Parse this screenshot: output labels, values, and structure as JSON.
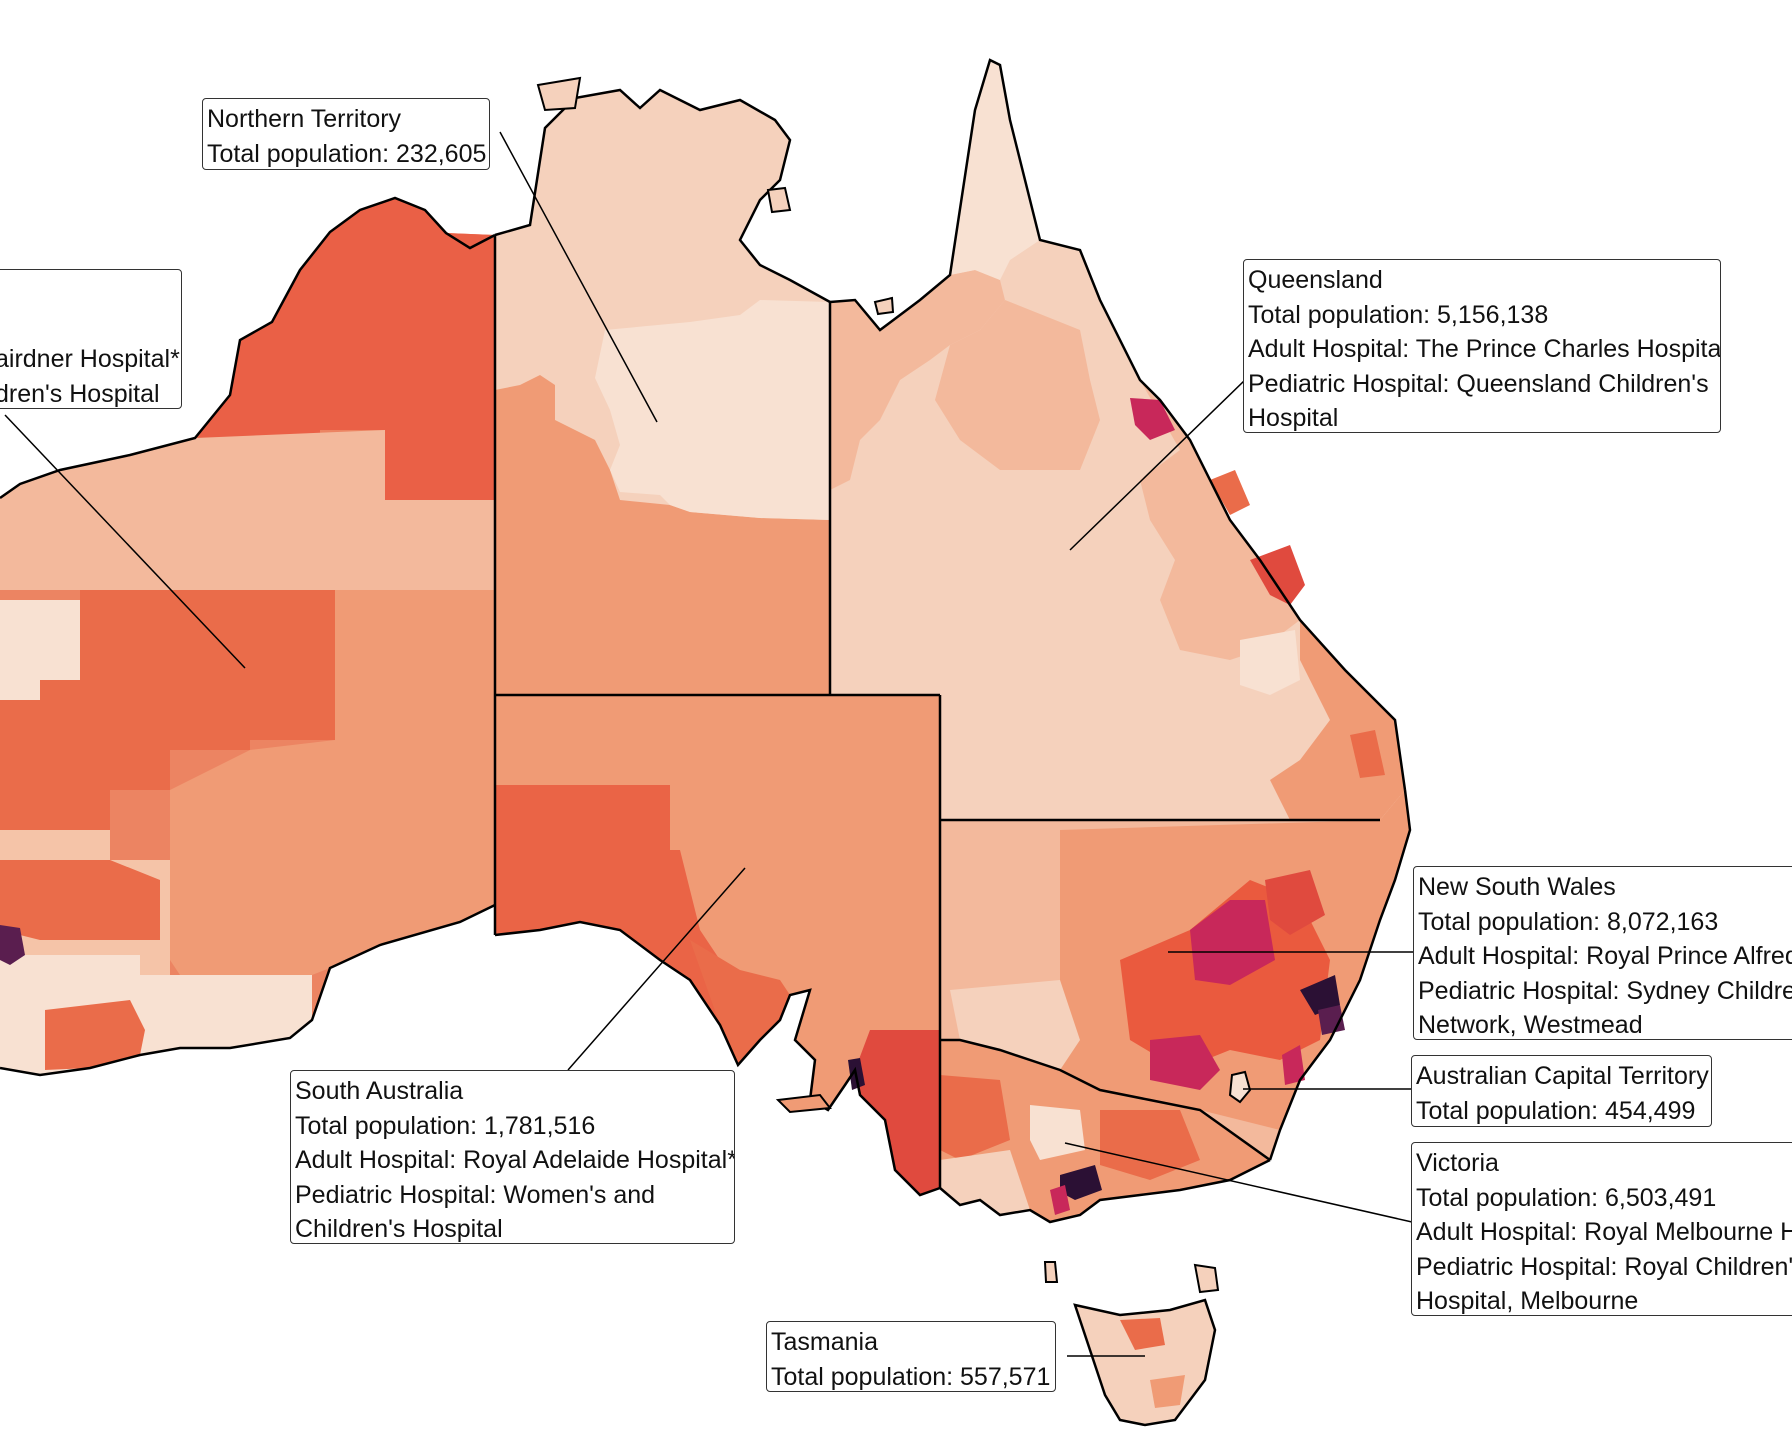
{
  "colors": {
    "border": "#000000",
    "very_light": "#f8e1d2",
    "light": "#f5d1bc",
    "light_mid": "#f3b99c",
    "mid": "#f09b75",
    "mid_dark": "#ec8462",
    "dark": "#ea6c4a",
    "red": "#e04a3e",
    "crimson": "#c8285a",
    "purple": "#5a1e4f",
    "dark_purple": "#2b1034"
  },
  "labels": {
    "western_australia": {
      "line3": "airdner Hospital*",
      "line4": "dren's Hospital"
    },
    "northern_territory": {
      "name": "Northern Territory",
      "population": "Total population: 232,605"
    },
    "queensland": {
      "name": "Queensland",
      "population": "Total population: 5,156,138",
      "adult": "Adult Hospital: The Prince Charles Hospital",
      "pediatric1": "Pediatric Hospital: Queensland Children's",
      "pediatric2": "Hospital"
    },
    "new_south_wales": {
      "name": "New South Wales",
      "population": "Total population: 8,072,163",
      "adult": "Adult Hospital: Royal Prince Alfred",
      "pediatric1": "Pediatric Hospital: Sydney Children",
      "pediatric2": "Network, Westmead"
    },
    "act": {
      "name": "Australian Capital Territory",
      "population": "Total population: 454,499"
    },
    "victoria": {
      "name": "Victoria",
      "population": "Total population: 6,503,491",
      "adult": "Adult Hospital: Royal Melbourne Ho",
      "pediatric1": "Pediatric Hospital: Royal Children's",
      "pediatric2": "Hospital, Melbourne"
    },
    "south_australia": {
      "name": "South Australia",
      "population": "Total population: 1,781,516",
      "adult": "Adult Hospital: Royal Adelaide Hospital*",
      "pediatric1": "Pediatric Hospital: Women's and",
      "pediatric2": "Children's Hospital"
    },
    "tasmania": {
      "name": "Tasmania",
      "population": "Total population: 557,571"
    }
  }
}
